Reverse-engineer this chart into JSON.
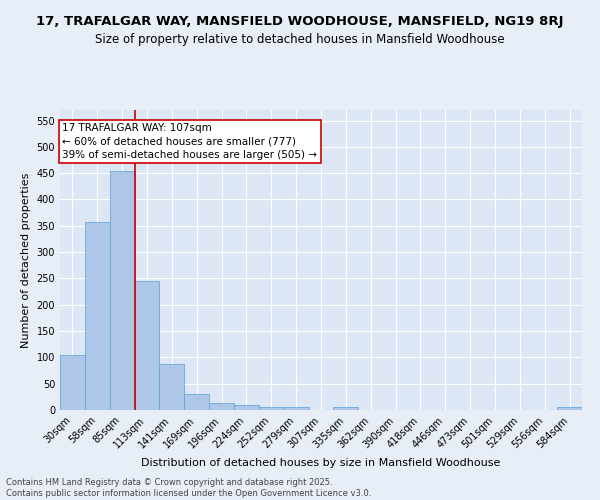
{
  "title": "17, TRAFALGAR WAY, MANSFIELD WOODHOUSE, MANSFIELD, NG19 8RJ",
  "subtitle": "Size of property relative to detached houses in Mansfield Woodhouse",
  "xlabel": "Distribution of detached houses by size in Mansfield Woodhouse",
  "ylabel": "Number of detached properties",
  "categories": [
    "30sqm",
    "58sqm",
    "85sqm",
    "113sqm",
    "141sqm",
    "169sqm",
    "196sqm",
    "224sqm",
    "252sqm",
    "279sqm",
    "307sqm",
    "335sqm",
    "362sqm",
    "390sqm",
    "418sqm",
    "446sqm",
    "473sqm",
    "501sqm",
    "529sqm",
    "556sqm",
    "584sqm"
  ],
  "values": [
    105,
    358,
    455,
    245,
    88,
    30,
    13,
    9,
    5,
    5,
    0,
    5,
    0,
    0,
    0,
    0,
    0,
    0,
    0,
    0,
    5
  ],
  "bar_color": "#aec6e8",
  "bar_edge_color": "#5a9fd4",
  "vline_x_idx": 2.5,
  "vline_color": "#cc0000",
  "annotation_text": "17 TRAFALGAR WAY: 107sqm\n← 60% of detached houses are smaller (777)\n39% of semi-detached houses are larger (505) →",
  "annotation_box_color": "#ffffff",
  "annotation_box_edge_color": "#cc0000",
  "ylim": [
    0,
    570
  ],
  "yticks": [
    0,
    50,
    100,
    150,
    200,
    250,
    300,
    350,
    400,
    450,
    500,
    550
  ],
  "fig_bg_color": "#e8eef8",
  "plot_bg_color": "#dde6f4",
  "footer_text": "Contains HM Land Registry data © Crown copyright and database right 2025.\nContains public sector information licensed under the Open Government Licence v3.0.",
  "title_fontsize": 9.5,
  "subtitle_fontsize": 8.5,
  "xlabel_fontsize": 8,
  "ylabel_fontsize": 8,
  "tick_fontsize": 7,
  "annotation_fontsize": 7.5,
  "footer_fontsize": 6
}
